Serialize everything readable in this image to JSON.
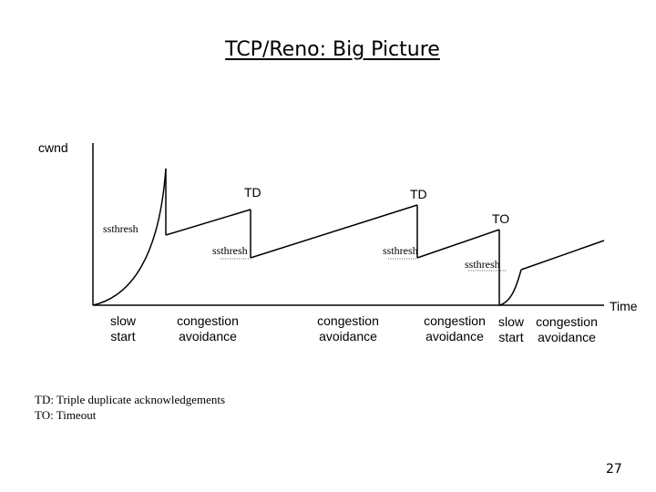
{
  "slide": {
    "title": "TCP/Reno: Big Picture",
    "page_number": "27"
  },
  "axes": {
    "y_label": "cwnd",
    "x_label": "Time"
  },
  "events": {
    "td_1": "TD",
    "td_2": "TD",
    "to": "TO"
  },
  "thresholds": {
    "ssthresh_1": "ssthresh",
    "ssthresh_2": "ssthresh",
    "ssthresh_3": "ssthresh",
    "ssthresh_4": "ssthresh"
  },
  "phases": [
    {
      "line1": "slow",
      "line2": "start"
    },
    {
      "line1": "congestion",
      "line2": "avoidance"
    },
    {
      "line1": "congestion",
      "line2": "avoidance"
    },
    {
      "line1": "congestion",
      "line2": "avoidance"
    },
    {
      "line1": "slow",
      "line2": "start"
    },
    {
      "line1": "congestion",
      "line2": "avoidance"
    }
  ],
  "legend": {
    "td": "TD: Triple duplicate acknowledgements",
    "to": "TO: Timeout"
  }
}
